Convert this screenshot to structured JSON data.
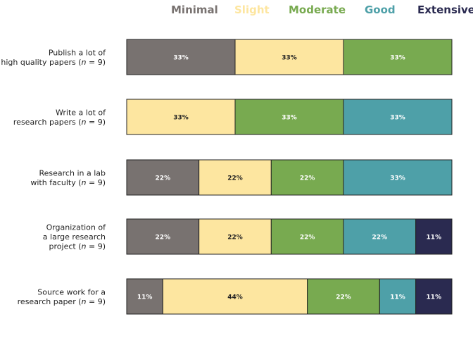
{
  "chart_data": {
    "type": "bar",
    "orientation": "horizontal",
    "stacked": true,
    "percent": true,
    "legend_position": "top-right",
    "grid": false,
    "series": [
      {
        "name": "Minimal",
        "color": "#787270",
        "text_color": "#ffffff"
      },
      {
        "name": "Slight",
        "color": "#fde6a0",
        "text_color": "#222222"
      },
      {
        "name": "Moderate",
        "color": "#78aa50",
        "text_color": "#ffffff"
      },
      {
        "name": "Good",
        "color": "#4ea0a8",
        "text_color": "#ffffff"
      },
      {
        "name": "Extensive",
        "color": "#2a2a50",
        "text_color": "#ffffff"
      }
    ],
    "legend_text_colors": [
      "#787270",
      "#fde6a0",
      "#78aa50",
      "#4ea0a8",
      "#2a2a50"
    ],
    "categories": [
      {
        "lines": [
          {
            "text": "Publish a lot of"
          },
          {
            "text": "high quality papers (",
            "italic": "n",
            "tail": " = 9)"
          }
        ],
        "values": [
          33.3,
          33.3,
          33.3,
          0,
          0
        ],
        "labels": [
          "33%",
          "33%",
          "33%",
          "",
          ""
        ]
      },
      {
        "lines": [
          {
            "text": "Write a lot of"
          },
          {
            "text": "research papers (",
            "italic": "n",
            "tail": " = 9)"
          }
        ],
        "values": [
          0,
          33.3,
          33.3,
          33.3,
          0
        ],
        "labels": [
          "",
          "33%",
          "33%",
          "33%",
          ""
        ]
      },
      {
        "lines": [
          {
            "text": "Research in a lab"
          },
          {
            "text": "with faculty (",
            "italic": "n",
            "tail": " = 9)"
          }
        ],
        "values": [
          22.2,
          22.2,
          22.2,
          33.3,
          0
        ],
        "labels": [
          "22%",
          "22%",
          "22%",
          "33%",
          ""
        ]
      },
      {
        "lines": [
          {
            "text": "Organization of"
          },
          {
            "text": "a large research"
          },
          {
            "text": "project (",
            "italic": "n",
            "tail": " = 9)"
          }
        ],
        "values": [
          22.2,
          22.2,
          22.2,
          22.2,
          11.1
        ],
        "labels": [
          "22%",
          "22%",
          "22%",
          "22%",
          "11%"
        ]
      },
      {
        "lines": [
          {
            "text": "Source work for a"
          },
          {
            "text": "research paper (",
            "italic": "n",
            "tail": " = 9)"
          }
        ],
        "values": [
          11.1,
          44.4,
          22.2,
          11.1,
          11.1
        ],
        "labels": [
          "11%",
          "44%",
          "22%",
          "11%",
          "11%"
        ]
      }
    ]
  }
}
